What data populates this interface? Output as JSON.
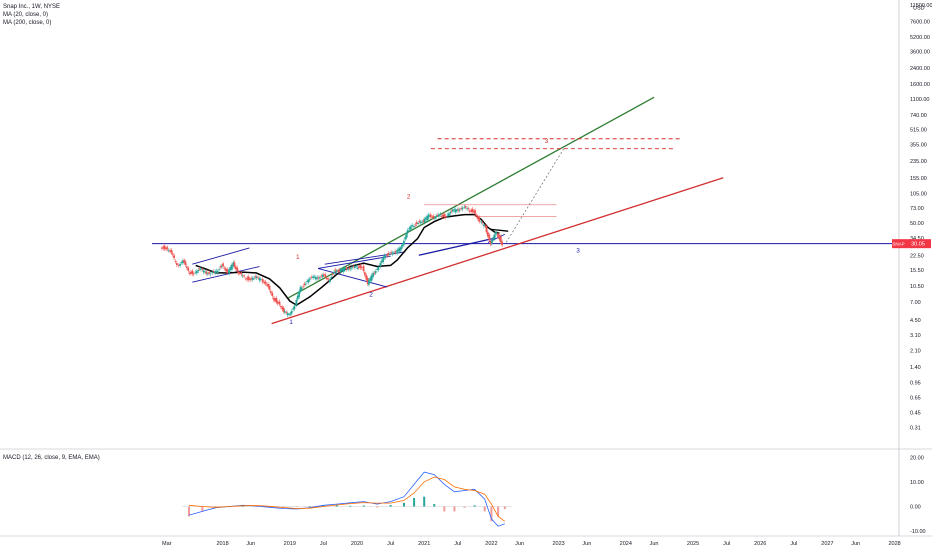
{
  "legend": {
    "title": "Snap Inc., 1W, NYSE",
    "ma20": "MA (20, close, 0)",
    "ma200": "MA (200, close, 0)",
    "macd": "MACD (12, 26, close, 9, EMA, EMA)"
  },
  "price_badge": {
    "symbol": "SNAP",
    "price": "30.05",
    "color": "#f23645"
  },
  "currency": "USD",
  "colors": {
    "green_channel": "#2e7d32",
    "red_trendline": "#d32f2f",
    "blue_lines": "#1a1aa6",
    "candle_up": "#26a69a",
    "candle_down": "#ef5350",
    "macd_line": "#2962ff",
    "signal_line": "#ff6d00"
  },
  "wave_labels": [
    {
      "text": "1",
      "t": 2019.02,
      "price": 4.05,
      "color": "#1a1aa6"
    },
    {
      "text": "1",
      "t": 2019.12,
      "price": 20.5,
      "color": "#d32f2f"
    },
    {
      "text": "2",
      "t": 2020.21,
      "price": 8.05,
      "color": "#1a1aa6"
    },
    {
      "text": "2",
      "t": 2020.77,
      "price": 92.0,
      "color": "#d32f2f"
    },
    {
      "text": "3",
      "t": 2023.29,
      "price": 24.0,
      "color": "#1a1aa6"
    },
    {
      "text": "3",
      "t": 2022.82,
      "price": 370.0,
      "color": "#d32f2f"
    }
  ],
  "chart_data": [
    {
      "type": "line",
      "title": "Snap Inc., 1W, NYSE",
      "scale": "log",
      "ylabel": "USD",
      "xlim": [
        2016.95,
        2028.05
      ],
      "ylim": [
        0.185,
        13000
      ],
      "last_price": 30.05,
      "x_tick_labels": [
        {
          "t": 2017.17,
          "label": "Mar"
        },
        {
          "t": 2018.0,
          "label": "2018"
        },
        {
          "t": 2018.42,
          "label": "Jun"
        },
        {
          "t": 2019.0,
          "label": "2019"
        },
        {
          "t": 2019.5,
          "label": "Jul"
        },
        {
          "t": 2020.0,
          "label": "2020"
        },
        {
          "t": 2020.5,
          "label": "Jul"
        },
        {
          "t": 2021.0,
          "label": "2021"
        },
        {
          "t": 2021.5,
          "label": "Jul"
        },
        {
          "t": 2022.0,
          "label": "2022"
        },
        {
          "t": 2022.42,
          "label": "Jun"
        },
        {
          "t": 2023.0,
          "label": "2023"
        },
        {
          "t": 2023.42,
          "label": "Jun"
        },
        {
          "t": 2024.0,
          "label": "2024"
        },
        {
          "t": 2024.42,
          "label": "Jun"
        },
        {
          "t": 2025.0,
          "label": "2025"
        },
        {
          "t": 2025.5,
          "label": "Jul"
        },
        {
          "t": 2026.0,
          "label": "2026"
        },
        {
          "t": 2026.5,
          "label": "Jul"
        },
        {
          "t": 2027.0,
          "label": "2027"
        },
        {
          "t": 2027.42,
          "label": "Jun"
        },
        {
          "t": 2028.0,
          "label": "2028"
        }
      ],
      "y_tick_labels": [
        {
          "v": 11500,
          "label": "11500.00"
        },
        {
          "v": 7600,
          "label": "7600.00"
        },
        {
          "v": 5200,
          "label": "5200.00"
        },
        {
          "v": 3600,
          "label": "3600.00"
        },
        {
          "v": 2400,
          "label": "2400.00"
        },
        {
          "v": 1600,
          "label": "1600.00"
        },
        {
          "v": 1100,
          "label": "1100.00"
        },
        {
          "v": 740,
          "label": "740.00"
        },
        {
          "v": 515,
          "label": "515.00"
        },
        {
          "v": 355,
          "label": "355.00"
        },
        {
          "v": 235,
          "label": "235.00"
        },
        {
          "v": 155,
          "label": "155.00"
        },
        {
          "v": 105,
          "label": "105.00"
        },
        {
          "v": 73,
          "label": "73.00"
        },
        {
          "v": 50,
          "label": "50.00"
        },
        {
          "v": 34.5,
          "label": "34.50"
        },
        {
          "v": 22.5,
          "label": "22.50"
        },
        {
          "v": 15.5,
          "label": "15.50"
        },
        {
          "v": 10.5,
          "label": "10.50"
        },
        {
          "v": 7.0,
          "label": "7.00"
        },
        {
          "v": 4.5,
          "label": "4.50"
        },
        {
          "v": 3.1,
          "label": "3.10"
        },
        {
          "v": 2.1,
          "label": "2.10"
        },
        {
          "v": 1.4,
          "label": "1.40"
        },
        {
          "v": 0.95,
          "label": "0.95"
        },
        {
          "v": 0.65,
          "label": "0.65"
        },
        {
          "v": 0.45,
          "label": "0.45"
        },
        {
          "v": 0.31,
          "label": "0.31"
        }
      ],
      "series": [
        {
          "name": "SNAP",
          "style": "candles",
          "x": [
            2017.17,
            2017.25,
            2017.33,
            2017.42,
            2017.5,
            2017.58,
            2017.67,
            2017.75,
            2017.83,
            2017.92,
            2018.0,
            2018.08,
            2018.17,
            2018.25,
            2018.33,
            2018.42,
            2018.5,
            2018.58,
            2018.67,
            2018.75,
            2018.83,
            2018.92,
            2019.0,
            2019.08,
            2019.17,
            2019.25,
            2019.33,
            2019.42,
            2019.5,
            2019.58,
            2019.67,
            2019.75,
            2019.83,
            2019.92,
            2020.0,
            2020.08,
            2020.17,
            2020.25,
            2020.33,
            2020.42,
            2020.5,
            2020.58,
            2020.67,
            2020.75,
            2020.83,
            2020.92,
            2021.0,
            2021.08,
            2021.17,
            2021.25,
            2021.33,
            2021.42,
            2021.5,
            2021.58,
            2021.67,
            2021.75,
            2021.83,
            2021.92,
            2022.0,
            2022.08,
            2022.17
          ],
          "values": [
            27,
            24,
            17,
            20,
            15,
            14.5,
            16,
            14.5,
            14.5,
            15,
            18,
            14.5,
            18.2,
            14.5,
            13,
            12.5,
            13,
            12,
            11,
            8,
            7,
            5.5,
            5.0,
            6.5,
            10,
            11.5,
            13,
            12.5,
            14,
            12,
            15.5,
            15,
            16,
            16.5,
            17,
            17,
            11,
            14,
            17,
            22,
            24,
            24,
            27,
            40,
            47,
            52,
            52,
            60,
            58,
            62,
            60,
            68,
            68,
            75,
            70,
            68,
            52,
            45,
            30,
            40,
            30.05
          ]
        },
        {
          "name": "MA (20, close, 0)",
          "x": [
            2017.6,
            2017.75,
            2017.9,
            2018.1,
            2018.3,
            2018.5,
            2018.7,
            2018.85,
            2019.0,
            2019.1,
            2019.3,
            2019.5,
            2019.7,
            2019.9,
            2020.1,
            2020.3,
            2020.5,
            2020.6,
            2020.75,
            2020.9,
            2021.0,
            2021.15,
            2021.3,
            2021.45,
            2021.6,
            2021.75,
            2021.85,
            2021.95,
            2022.05,
            2022.12
          ],
          "values": [
            17.5,
            16,
            14.5,
            14.5,
            14.8,
            14.5,
            12.5,
            10,
            7.2,
            6.5,
            8,
            10.5,
            14,
            17,
            18.5,
            17,
            17.5,
            20,
            27,
            34,
            45,
            52,
            58,
            60,
            62,
            62,
            55,
            45,
            40,
            39
          ]
        }
      ]
    },
    {
      "type": "line",
      "title": "MACD (12, 26, close, 9, EMA, EMA)",
      "ylim": [
        -12,
        23
      ],
      "y_tick_labels": [
        {
          "v": 20,
          "label": "20.00"
        },
        {
          "v": 10,
          "label": "10.00"
        },
        {
          "v": 0,
          "label": "0.00"
        },
        {
          "v": -10,
          "label": "-10.00"
        }
      ],
      "series": [
        {
          "name": "MACD",
          "x": [
            2017.5,
            2017.7,
            2017.9,
            2018.1,
            2018.3,
            2018.5,
            2018.7,
            2018.9,
            2019.1,
            2019.3,
            2019.5,
            2019.7,
            2019.9,
            2020.1,
            2020.3,
            2020.5,
            2020.7,
            2020.85,
            2021.0,
            2021.15,
            2021.3,
            2021.45,
            2021.6,
            2021.75,
            2021.9,
            2022.0,
            2022.1,
            2022.2
          ],
          "values": [
            -3.5,
            -2,
            -0.5,
            0,
            0.5,
            0.2,
            -0.3,
            -0.8,
            -1,
            -0.5,
            0.5,
            1,
            1.5,
            2,
            1,
            2,
            4,
            9,
            14,
            13,
            9,
            6,
            6.5,
            7,
            3,
            -5,
            -8,
            -7
          ]
        },
        {
          "name": "Signal",
          "x": [
            2017.5,
            2017.7,
            2017.9,
            2018.1,
            2018.3,
            2018.5,
            2018.7,
            2018.9,
            2019.1,
            2019.3,
            2019.5,
            2019.7,
            2019.9,
            2020.1,
            2020.3,
            2020.5,
            2020.7,
            2020.85,
            2021.0,
            2021.15,
            2021.3,
            2021.45,
            2021.6,
            2021.75,
            2021.9,
            2022.0,
            2022.1,
            2022.2
          ],
          "values": [
            0.5,
            0,
            -0.3,
            0,
            0.3,
            0.4,
            0.1,
            -0.4,
            -0.8,
            -0.7,
            0,
            0.6,
            1.2,
            1.6,
            1.4,
            1.4,
            2.5,
            5.5,
            10,
            12,
            11,
            8,
            7,
            6.5,
            5,
            1,
            -4,
            -6
          ]
        }
      ]
    }
  ]
}
